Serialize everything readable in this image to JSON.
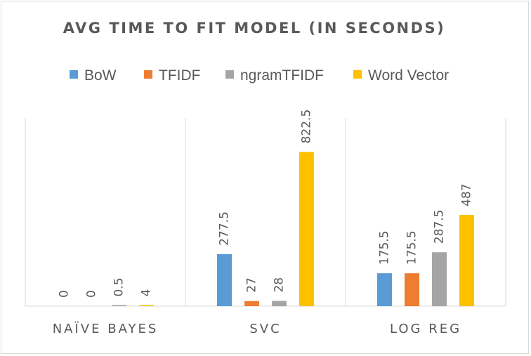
{
  "chart_data": {
    "type": "bar",
    "title": "AVG TIME TO FIT MODEL (IN SECONDS)",
    "categories": [
      "NAÏVE BAYES",
      "SVC",
      "LOG REG"
    ],
    "series": [
      {
        "name": "BoW",
        "color": "#5B9BD5",
        "values": [
          0,
          277.5,
          175.5
        ]
      },
      {
        "name": "TFIDF",
        "color": "#ED7D31",
        "values": [
          0,
          27,
          175.5
        ]
      },
      {
        "name": "ngramTFIDF",
        "color": "#A5A5A5",
        "values": [
          0.5,
          28,
          287.5
        ]
      },
      {
        "name": "Word Vector",
        "color": "#FFC000",
        "values": [
          4,
          822.5,
          487
        ]
      }
    ],
    "xlabel": "",
    "ylabel": "",
    "ylim": [
      0,
      1000
    ],
    "legend_position": "top",
    "data_labels": true,
    "grid": false
  }
}
